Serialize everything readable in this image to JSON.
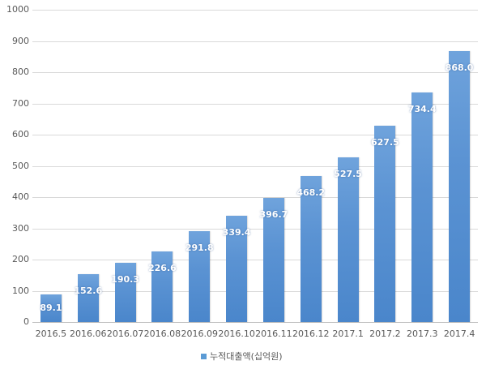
{
  "chart_data": {
    "type": "bar",
    "title": "",
    "xlabel": "",
    "ylabel": "",
    "ylim": [
      0,
      1000
    ],
    "yticks": [
      0,
      100,
      200,
      300,
      400,
      500,
      600,
      700,
      800,
      900,
      1000
    ],
    "grid": true,
    "legend_position": "bottom",
    "categories": [
      "2016.5",
      "2016.06",
      "2016.07",
      "2016.08",
      "2016.09",
      "2016.10",
      "2016.11",
      "2016.12",
      "2017.1",
      "2017.2",
      "2017.3",
      "2017.4"
    ],
    "series": [
      {
        "name": "누적대출액(십억원)",
        "color": "#5b9bd5",
        "values": [
          89.1,
          152.6,
          190.3,
          226.6,
          291.8,
          339.4,
          396.7,
          468.2,
          527.5,
          627.5,
          734.4,
          868.0
        ],
        "labels": [
          "89.1",
          "152.6",
          "190.3",
          "226.6",
          "291.8",
          "339.4",
          "396.7",
          "468.2",
          "527.5",
          "627.5",
          "734.4",
          "868.0"
        ]
      }
    ]
  }
}
